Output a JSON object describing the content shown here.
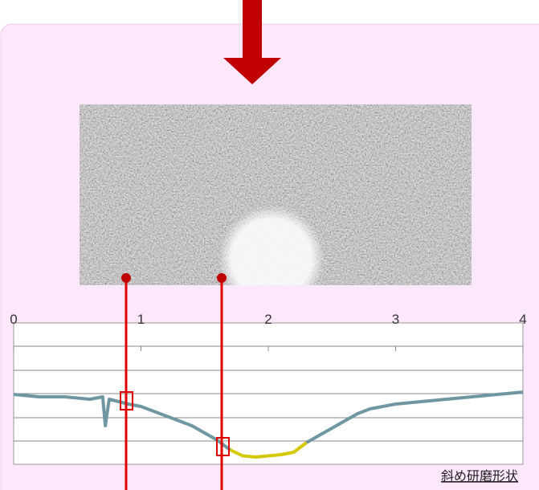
{
  "chart_data": {
    "type": "line",
    "annotation": "斜め研磨形状",
    "x": [
      0,
      0.2,
      0.4,
      0.6,
      0.7,
      0.72,
      0.75,
      0.9,
      1.0,
      1.1,
      1.2,
      1.3,
      1.4,
      1.5,
      1.6,
      1.7,
      1.8,
      1.9,
      2.0,
      2.1,
      2.2,
      2.3,
      2.4,
      2.5,
      2.6,
      2.7,
      2.8,
      3.0,
      3.2,
      3.4,
      3.6,
      3.8,
      4.0
    ],
    "series": [
      {
        "color": "#6f97a2",
        "values": [
          2.9,
          2.8,
          2.8,
          2.7,
          2.8,
          1.6,
          2.7,
          2.5,
          2.4,
          2.2,
          2.0,
          1.8,
          1.6,
          1.3,
          1.0,
          0.6,
          null,
          null,
          null,
          null,
          null,
          0.9,
          1.2,
          1.5,
          1.8,
          2.1,
          2.3,
          2.5,
          2.6,
          2.7,
          2.8,
          2.9,
          3.0
        ]
      },
      {
        "color": "#d4c800",
        "values": [
          null,
          null,
          null,
          null,
          null,
          null,
          null,
          null,
          null,
          null,
          null,
          null,
          null,
          null,
          null,
          0.6,
          0.35,
          0.3,
          0.35,
          0.4,
          0.5,
          0.9,
          null,
          null,
          null,
          null,
          null,
          null,
          null,
          null,
          null,
          null,
          null
        ]
      }
    ],
    "xlim": [
      0,
      4
    ],
    "xticks": [
      0,
      1,
      2,
      3,
      4
    ],
    "ylim": [
      0,
      5.87
    ]
  }
}
